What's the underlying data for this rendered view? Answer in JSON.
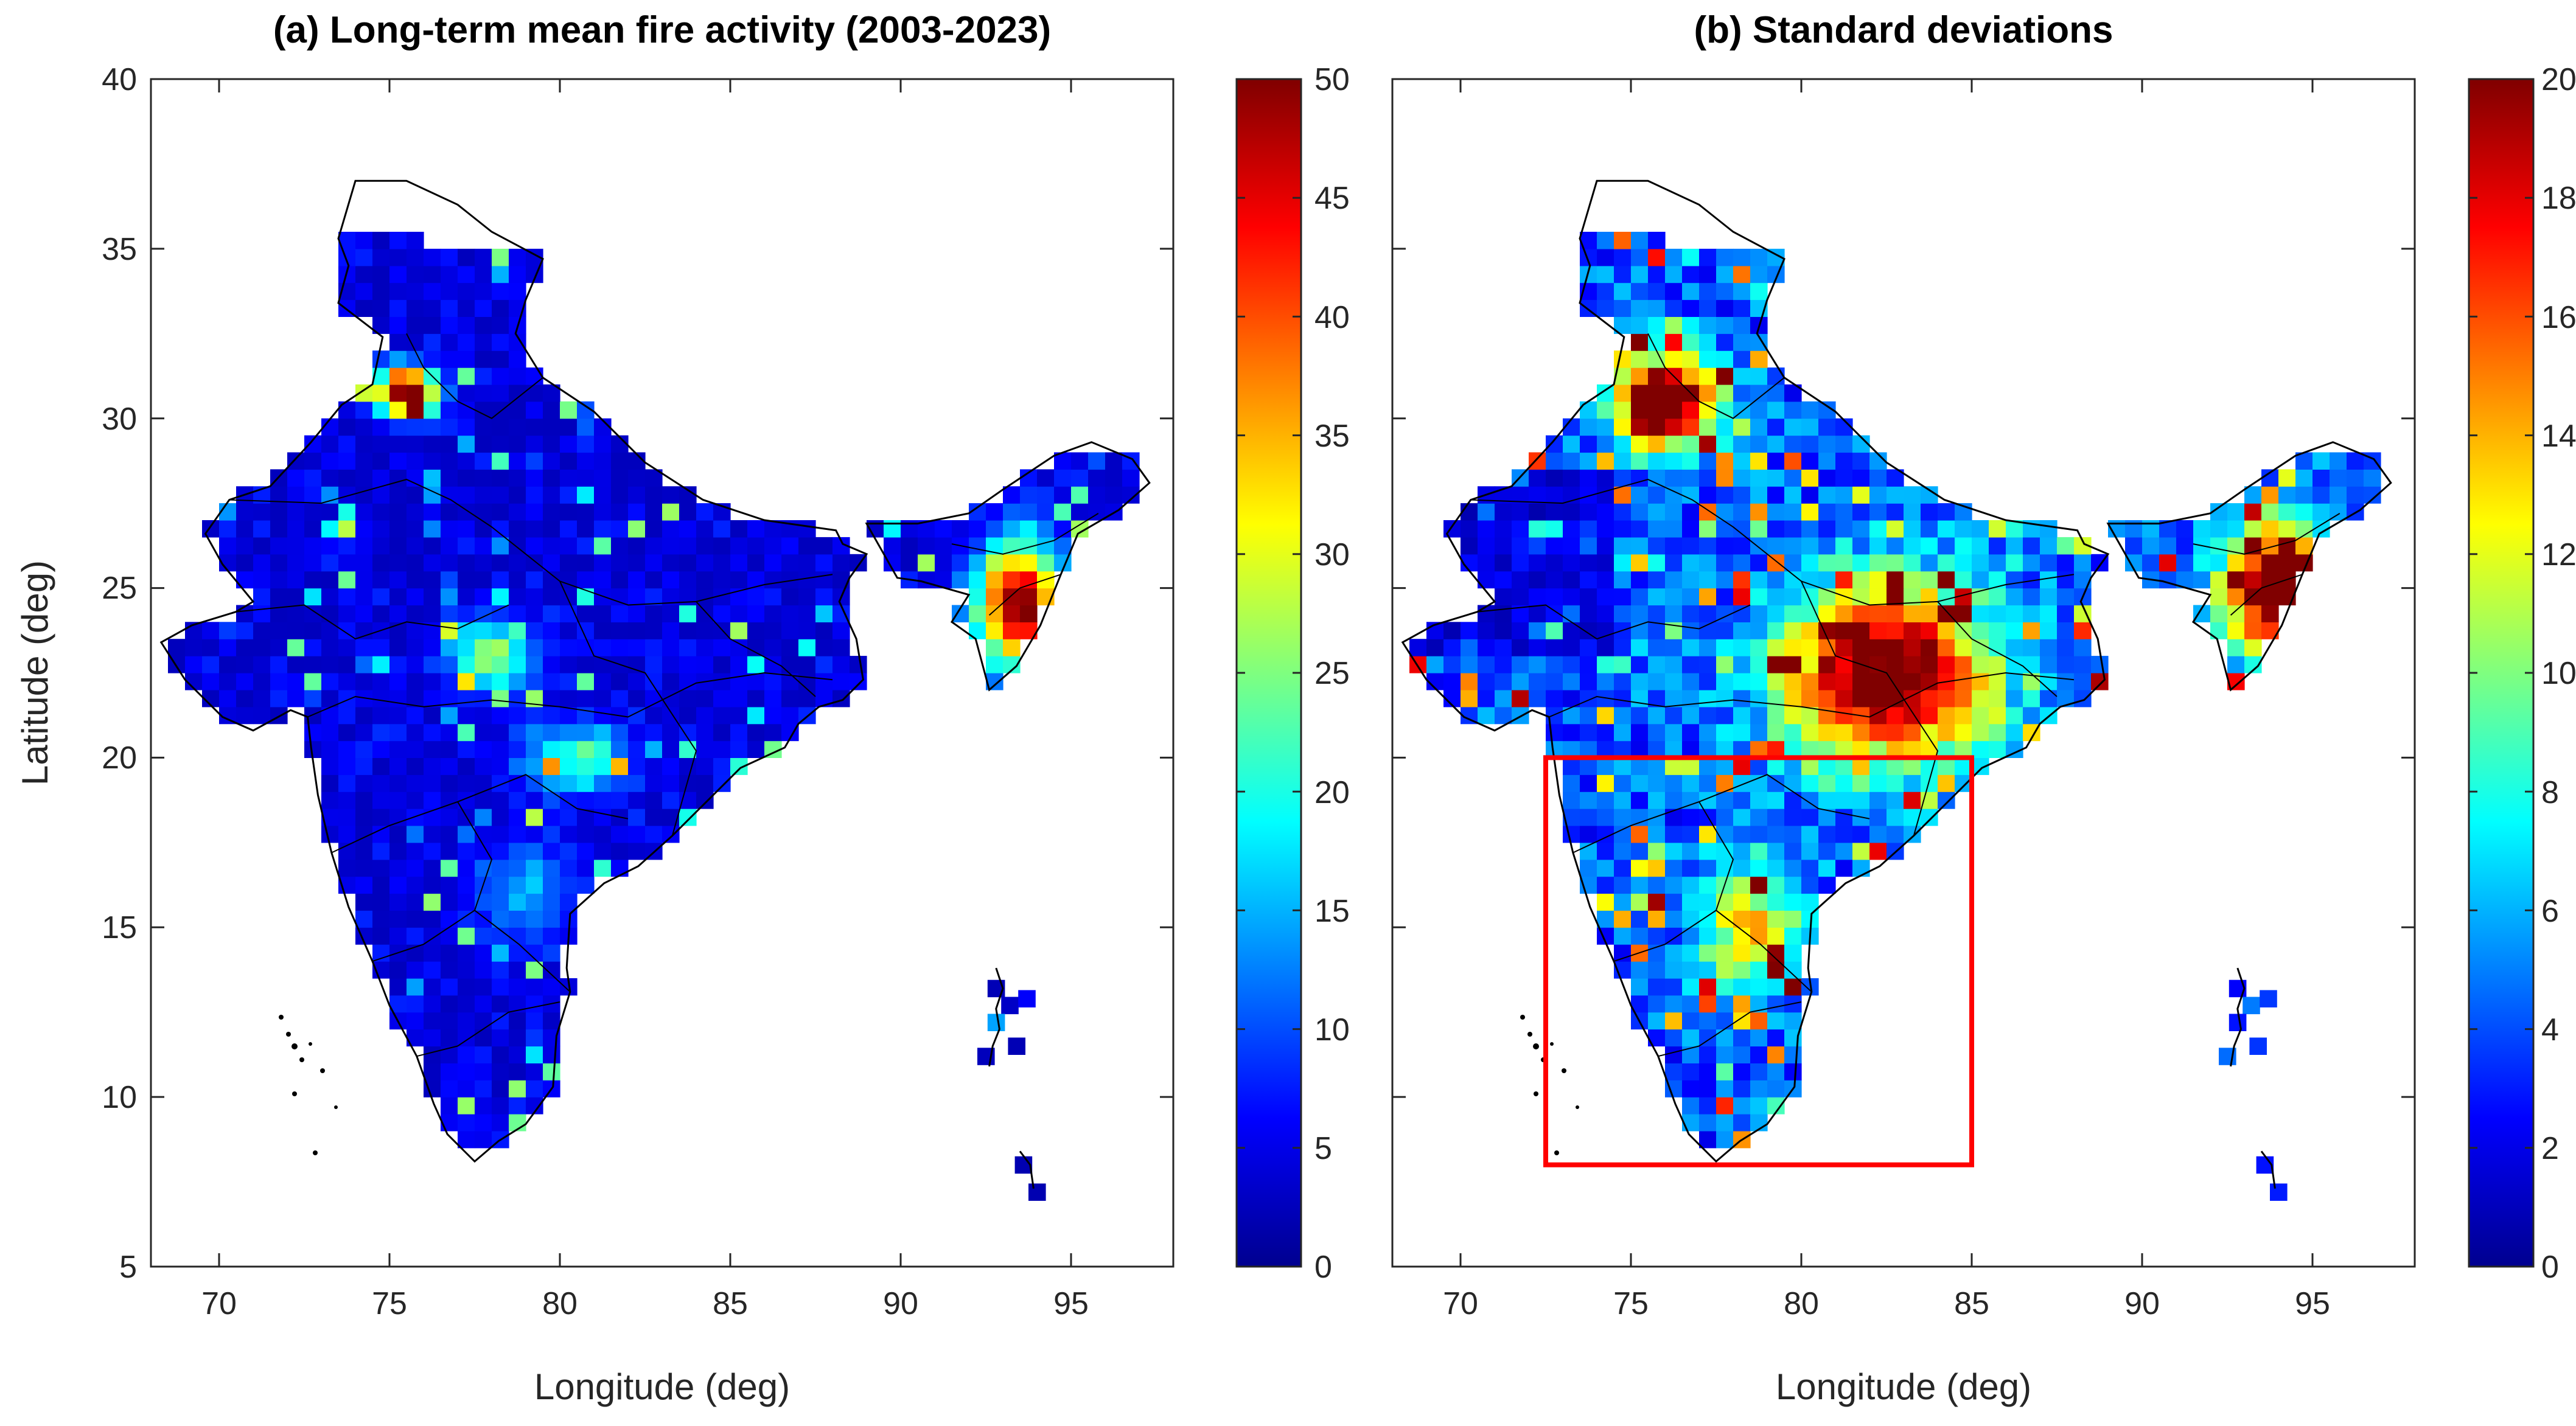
{
  "figure": {
    "panels": [
      {
        "id": "a",
        "title": "(a) Long-term mean fire activity (2003-2023)",
        "xlabel": "Longitude (deg)",
        "ylabel": "Latitude (deg)",
        "xlim": [
          68,
          98
        ],
        "ylim": [
          5,
          40
        ],
        "xticks": [
          "70",
          "75",
          "80",
          "85",
          "90",
          "95"
        ],
        "yticks": [
          "5",
          "10",
          "15",
          "20",
          "25",
          "30",
          "35",
          "40"
        ],
        "colorbar": {
          "colormap": "jet",
          "range": [
            0,
            50
          ],
          "ticks": [
            "0",
            "5",
            "10",
            "15",
            "20",
            "25",
            "30",
            "35",
            "40",
            "45",
            "50"
          ]
        },
        "highlight_box": null
      },
      {
        "id": "b",
        "title": "(b) Standard deviations",
        "xlabel": "Longitude (deg)",
        "ylabel": "",
        "xlim": [
          68,
          98
        ],
        "ylim": [
          5,
          40
        ],
        "xticks": [
          "70",
          "75",
          "80",
          "85",
          "90",
          "95"
        ],
        "yticks": [],
        "colorbar": {
          "colormap": "jet",
          "range": [
            0,
            20
          ],
          "ticks": [
            "0",
            "2",
            "4",
            "6",
            "8",
            "10",
            "12",
            "14",
            "16",
            "18",
            "20"
          ]
        },
        "highlight_box": {
          "lon": [
            72.5,
            85.0
          ],
          "lat": [
            8.0,
            20.0
          ],
          "color": "#ff0000"
        }
      }
    ]
  }
}
